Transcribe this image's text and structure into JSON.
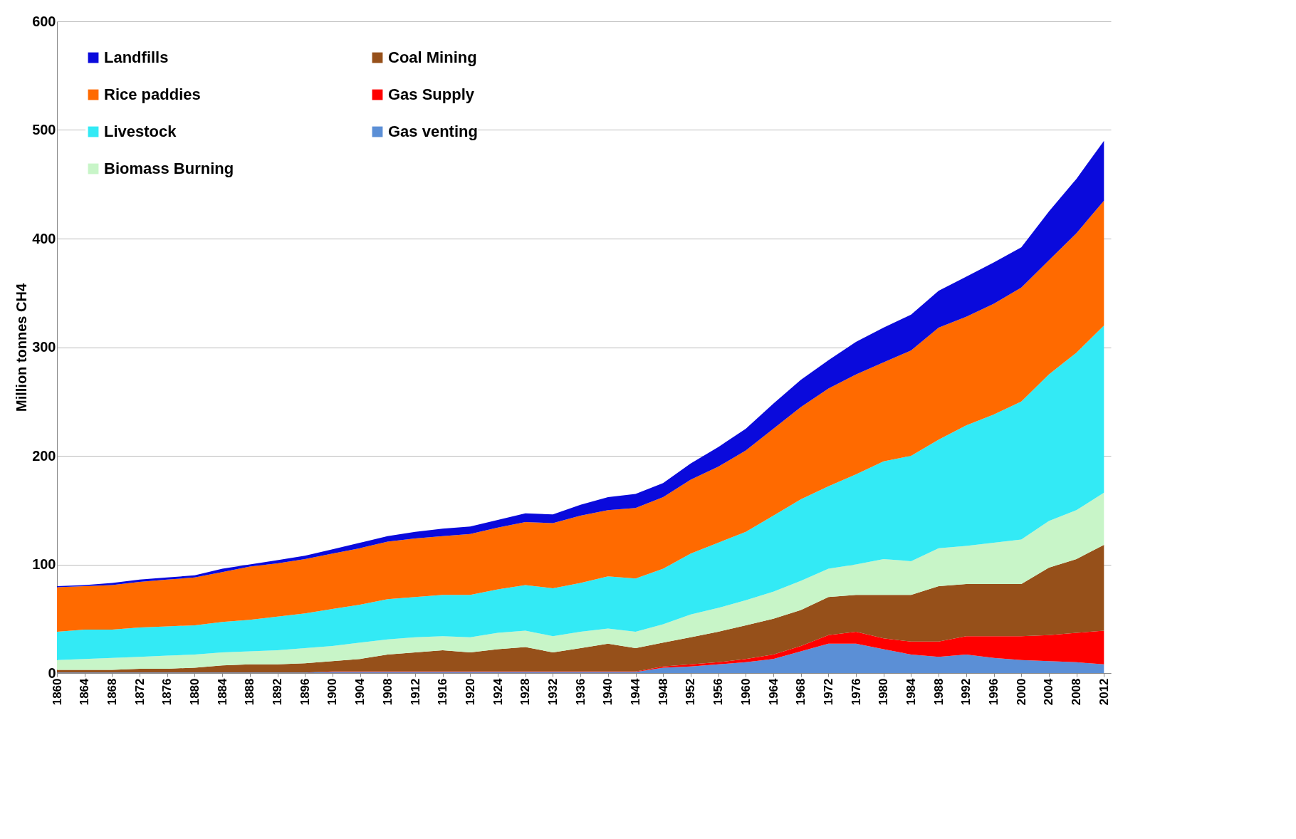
{
  "chart_data": {
    "type": "area",
    "ylabel": "Million tonnes CH4",
    "stacked": true,
    "grid": "y",
    "legend": "top left",
    "x": [
      1860,
      1864,
      1868,
      1872,
      1876,
      1880,
      1884,
      1888,
      1892,
      1896,
      1900,
      1904,
      1908,
      1912,
      1916,
      1920,
      1924,
      1928,
      1932,
      1936,
      1940,
      1944,
      1948,
      1952,
      1956,
      1960,
      1964,
      1968,
      1972,
      1976,
      1980,
      1984,
      1988,
      1992,
      1996,
      2000,
      2004,
      2008,
      2012
    ],
    "xlim": [
      1860,
      2013
    ],
    "xticks": [
      1860,
      1864,
      1868,
      1872,
      1876,
      1880,
      1884,
      1888,
      1892,
      1896,
      1900,
      1904,
      1908,
      1912,
      1916,
      1920,
      1924,
      1928,
      1932,
      1936,
      1940,
      1944,
      1948,
      1952,
      1956,
      1960,
      1964,
      1968,
      1972,
      1976,
      1980,
      1984,
      1988,
      1992,
      1996,
      2000,
      2004,
      2008,
      2012
    ],
    "ylim": [
      0,
      600
    ],
    "yticks": [
      0,
      100,
      200,
      300,
      400,
      500,
      600
    ],
    "series": [
      {
        "name": "Gas venting",
        "color": "#5b8fd6",
        "values": [
          0.5,
          0.5,
          0.5,
          0.5,
          0.5,
          0.5,
          0.5,
          0.5,
          0.5,
          0.5,
          1,
          1,
          1,
          1,
          1,
          1,
          1,
          1,
          1,
          1,
          1,
          1,
          5,
          6,
          8,
          10,
          13,
          20,
          27,
          27,
          22,
          17,
          15,
          17,
          14,
          12,
          11,
          10,
          8
        ]
      },
      {
        "name": "Gas Supply",
        "color": "#ff0000",
        "values": [
          0,
          0,
          0,
          0,
          0,
          0,
          0,
          0,
          0,
          0,
          0.5,
          0.5,
          0.5,
          0.5,
          0.5,
          0.5,
          0.5,
          0.5,
          0.5,
          0.5,
          0.5,
          0.5,
          1,
          2,
          2,
          3,
          4,
          5,
          8,
          11,
          10,
          12,
          14,
          17,
          20,
          22,
          24,
          27,
          31
        ]
      },
      {
        "name": "Coal Mining",
        "color": "#96501a",
        "values": [
          2.5,
          2.5,
          2.5,
          3.5,
          3.5,
          4.5,
          6.5,
          7.5,
          7.5,
          8.5,
          9.5,
          11.5,
          15.5,
          17.5,
          19.5,
          17.5,
          20.5,
          22.5,
          17.5,
          21.5,
          25.5,
          21.5,
          22,
          25,
          28,
          31,
          33,
          33,
          35,
          34,
          40,
          43,
          51,
          48,
          48,
          48,
          62,
          68,
          79
        ]
      },
      {
        "name": "Biomass Burning",
        "color": "#c8f5c8",
        "values": [
          9,
          10,
          11,
          11,
          12,
          12,
          12,
          12,
          13,
          14,
          14,
          15,
          14,
          14,
          13,
          14,
          15,
          15,
          15,
          15,
          14,
          15,
          17,
          21,
          22,
          23,
          25,
          27,
          26,
          28,
          33,
          31,
          35,
          35,
          38,
          41,
          43,
          45,
          48
        ]
      },
      {
        "name": "Livestock",
        "color": "#33eaf5",
        "values": [
          26,
          27,
          26,
          27,
          27,
          27,
          28,
          29,
          31,
          32,
          34,
          35,
          37,
          37,
          38,
          39,
          40,
          42,
          44,
          45,
          48,
          49,
          51,
          56,
          60,
          63,
          70,
          75,
          76,
          83,
          90,
          97,
          100,
          111,
          118,
          127,
          135,
          145,
          154
        ]
      },
      {
        "name": "Rice paddies",
        "color": "#ff6a00",
        "values": [
          41,
          40,
          41,
          42,
          43,
          44,
          46,
          49,
          49,
          50,
          51,
          52,
          53,
          54,
          54,
          56,
          57,
          58,
          60,
          62,
          61,
          65,
          66,
          68,
          70,
          75,
          80,
          85,
          90,
          92,
          91,
          97,
          103,
          100,
          102,
          105,
          105,
          110,
          115
        ]
      },
      {
        "name": "Landfills",
        "color": "#0a0adc",
        "values": [
          1,
          1,
          2,
          2,
          2,
          2,
          3,
          2,
          3,
          3,
          4,
          5,
          5,
          6,
          7,
          7,
          7,
          8,
          8,
          10,
          12,
          13,
          13,
          15,
          18,
          20,
          23,
          25,
          26,
          30,
          32,
          33,
          34,
          37,
          38,
          37,
          45,
          50,
          55
        ]
      }
    ]
  }
}
